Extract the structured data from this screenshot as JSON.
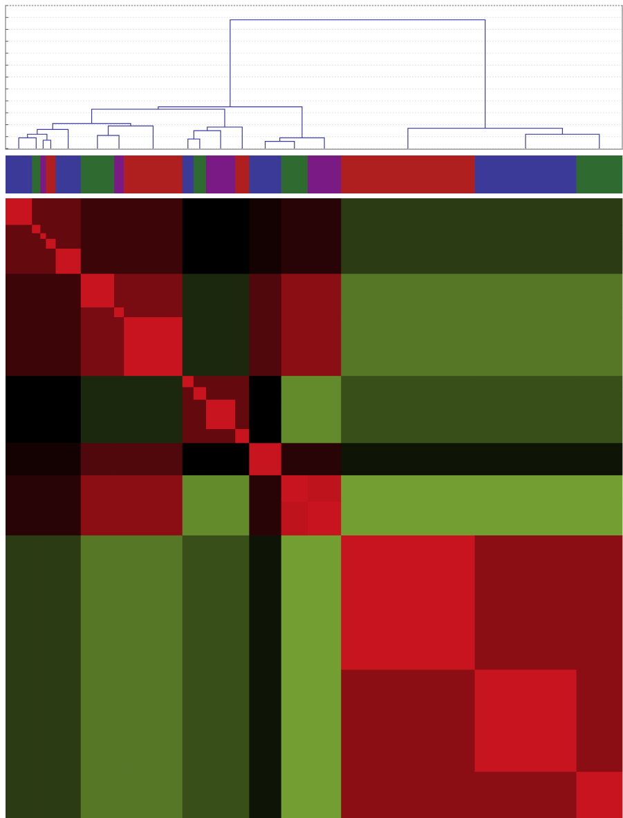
{
  "chart_data": {
    "type": "heatmap",
    "groups": [
      {
        "color": "#3b3a98",
        "size": 19
      },
      {
        "color": "#2f6b30",
        "size": 6
      },
      {
        "color": "#7a1a84",
        "size": 4
      },
      {
        "color": "#b01f1f",
        "size": 7
      },
      {
        "color": "#3b3a98",
        "size": 18
      },
      {
        "color": "#2f6b30",
        "size": 24
      },
      {
        "color": "#7a1a84",
        "size": 7
      },
      {
        "color": "#b01f1f",
        "size": 42
      },
      {
        "color": "#3b3a98",
        "size": 8
      },
      {
        "color": "#2f6b30",
        "size": 9
      },
      {
        "color": "#7a1a84",
        "size": 21
      },
      {
        "color": "#b01f1f",
        "size": 10
      },
      {
        "color": "#3b3a98",
        "size": 23
      },
      {
        "color": "#2f6b30",
        "size": 19
      },
      {
        "color": "#7a1a84",
        "size": 24
      },
      {
        "color": "#b01f1f",
        "size": 96
      },
      {
        "color": "#3b3a98",
        "size": 73
      },
      {
        "color": "#2f6b30",
        "size": 33
      }
    ],
    "dendrogram": {
      "color": "#3a3aa0",
      "ylim": [
        0,
        12
      ],
      "yticks": [
        0,
        1,
        2,
        3,
        4,
        5,
        6,
        7,
        8,
        9,
        10,
        11,
        12
      ],
      "merges": [
        [
          0,
          1,
          0.9
        ],
        [
          2,
          3,
          0.7
        ],
        [
          18,
          19,
          1.2
        ],
        [
          20,
          4,
          1.6
        ],
        [
          5,
          6,
          1.1
        ],
        [
          22,
          7,
          1.9
        ],
        [
          21,
          23,
          2.1
        ],
        [
          8,
          9,
          0.8
        ],
        [
          25,
          10,
          1.5
        ],
        [
          26,
          11,
          1.8
        ],
        [
          24,
          27,
          3.3
        ],
        [
          12,
          13,
          0.6
        ],
        [
          29,
          14,
          0.9
        ],
        [
          28,
          30,
          3.5
        ],
        [
          16,
          17,
          1.2
        ],
        [
          15,
          32,
          1.7
        ],
        [
          31,
          33,
          10.8
        ]
      ]
    },
    "heatmap": {
      "low": "#8ec63f",
      "mid": "#000000",
      "high": "#c8141e",
      "vlim": [
        -1,
        1
      ],
      "matrix": [
        [
          1,
          0.5,
          0.5,
          0.5,
          0.5,
          0.3,
          0.3,
          0.3,
          0,
          0,
          0,
          0,
          0.1,
          0.2,
          0.2,
          -0.3,
          -0.3,
          -0.3
        ],
        [
          0.5,
          1,
          0.5,
          0.5,
          0.5,
          0.3,
          0.3,
          0.3,
          0,
          0,
          0,
          0,
          0.1,
          0.2,
          0.2,
          -0.3,
          -0.3,
          -0.3
        ],
        [
          0.5,
          0.5,
          1,
          0.5,
          0.5,
          0.3,
          0.3,
          0.3,
          0,
          0,
          0,
          0,
          0.1,
          0.2,
          0.2,
          -0.3,
          -0.3,
          -0.3
        ],
        [
          0.5,
          0.5,
          0.5,
          1,
          0.5,
          0.3,
          0.3,
          0.3,
          0,
          0,
          0,
          0,
          0.1,
          0.2,
          0.2,
          -0.3,
          -0.3,
          -0.3
        ],
        [
          0.5,
          0.5,
          0.5,
          0.5,
          1,
          0.3,
          0.3,
          0.3,
          0,
          0,
          0,
          0,
          0.1,
          0.2,
          0.2,
          -0.3,
          -0.3,
          -0.3
        ],
        [
          0.3,
          0.3,
          0.3,
          0.3,
          0.3,
          1,
          0.6,
          0.6,
          -0.2,
          -0.2,
          -0.2,
          -0.2,
          0.4,
          0.7,
          0.7,
          -0.6,
          -0.6,
          -0.6
        ],
        [
          0.3,
          0.3,
          0.3,
          0.3,
          0.3,
          0.6,
          1,
          0.6,
          -0.2,
          -0.2,
          -0.2,
          -0.2,
          0.4,
          0.7,
          0.7,
          -0.6,
          -0.6,
          -0.6
        ],
        [
          0.3,
          0.3,
          0.3,
          0.3,
          0.3,
          0.6,
          0.6,
          1,
          -0.2,
          -0.2,
          -0.2,
          -0.2,
          0.4,
          0.7,
          0.7,
          -0.6,
          -0.6,
          -0.6
        ],
        [
          0,
          0,
          0,
          0,
          0,
          -0.2,
          -0.2,
          -0.2,
          1,
          0.5,
          0.5,
          0.5,
          0,
          -0.7,
          -0.7,
          -0.4,
          -0.4,
          -0.4
        ],
        [
          0,
          0,
          0,
          0,
          0,
          -0.2,
          -0.2,
          -0.2,
          0.5,
          1,
          0.5,
          0.5,
          0,
          -0.7,
          -0.7,
          -0.4,
          -0.4,
          -0.4
        ],
        [
          0,
          0,
          0,
          0,
          0,
          -0.2,
          -0.2,
          -0.2,
          0.5,
          0.5,
          1,
          0.5,
          0,
          -0.7,
          -0.7,
          -0.4,
          -0.4,
          -0.4
        ],
        [
          0,
          0,
          0,
          0,
          0,
          -0.2,
          -0.2,
          -0.2,
          0.5,
          0.5,
          0.5,
          1,
          0,
          -0.7,
          -0.7,
          -0.4,
          -0.4,
          -0.4
        ],
        [
          0.1,
          0.1,
          0.1,
          0.1,
          0.1,
          0.4,
          0.4,
          0.4,
          0,
          0,
          0,
          0,
          1,
          0.2,
          0.2,
          -0.1,
          -0.1,
          -0.1
        ],
        [
          0.2,
          0.2,
          0.2,
          0.2,
          0.2,
          0.7,
          0.7,
          0.7,
          -0.7,
          -0.7,
          -0.7,
          -0.7,
          0.2,
          1,
          0.95,
          -0.8,
          -0.8,
          -0.8
        ],
        [
          0.2,
          0.2,
          0.2,
          0.2,
          0.2,
          0.7,
          0.7,
          0.7,
          -0.7,
          -0.7,
          -0.7,
          -0.7,
          0.2,
          0.95,
          1,
          -0.8,
          -0.8,
          -0.8
        ],
        [
          -0.3,
          -0.3,
          -0.3,
          -0.3,
          -0.3,
          -0.6,
          -0.6,
          -0.6,
          -0.4,
          -0.4,
          -0.4,
          -0.4,
          -0.1,
          -0.8,
          -0.8,
          1,
          0.7,
          0.7
        ],
        [
          -0.3,
          -0.3,
          -0.3,
          -0.3,
          -0.3,
          -0.6,
          -0.6,
          -0.6,
          -0.4,
          -0.4,
          -0.4,
          -0.4,
          -0.1,
          -0.8,
          -0.8,
          0.7,
          1,
          0.7
        ],
        [
          -0.3,
          -0.3,
          -0.3,
          -0.3,
          -0.3,
          -0.6,
          -0.6,
          -0.6,
          -0.4,
          -0.4,
          -0.4,
          -0.4,
          -0.1,
          -0.8,
          -0.8,
          0.7,
          0.7,
          1
        ]
      ]
    }
  }
}
